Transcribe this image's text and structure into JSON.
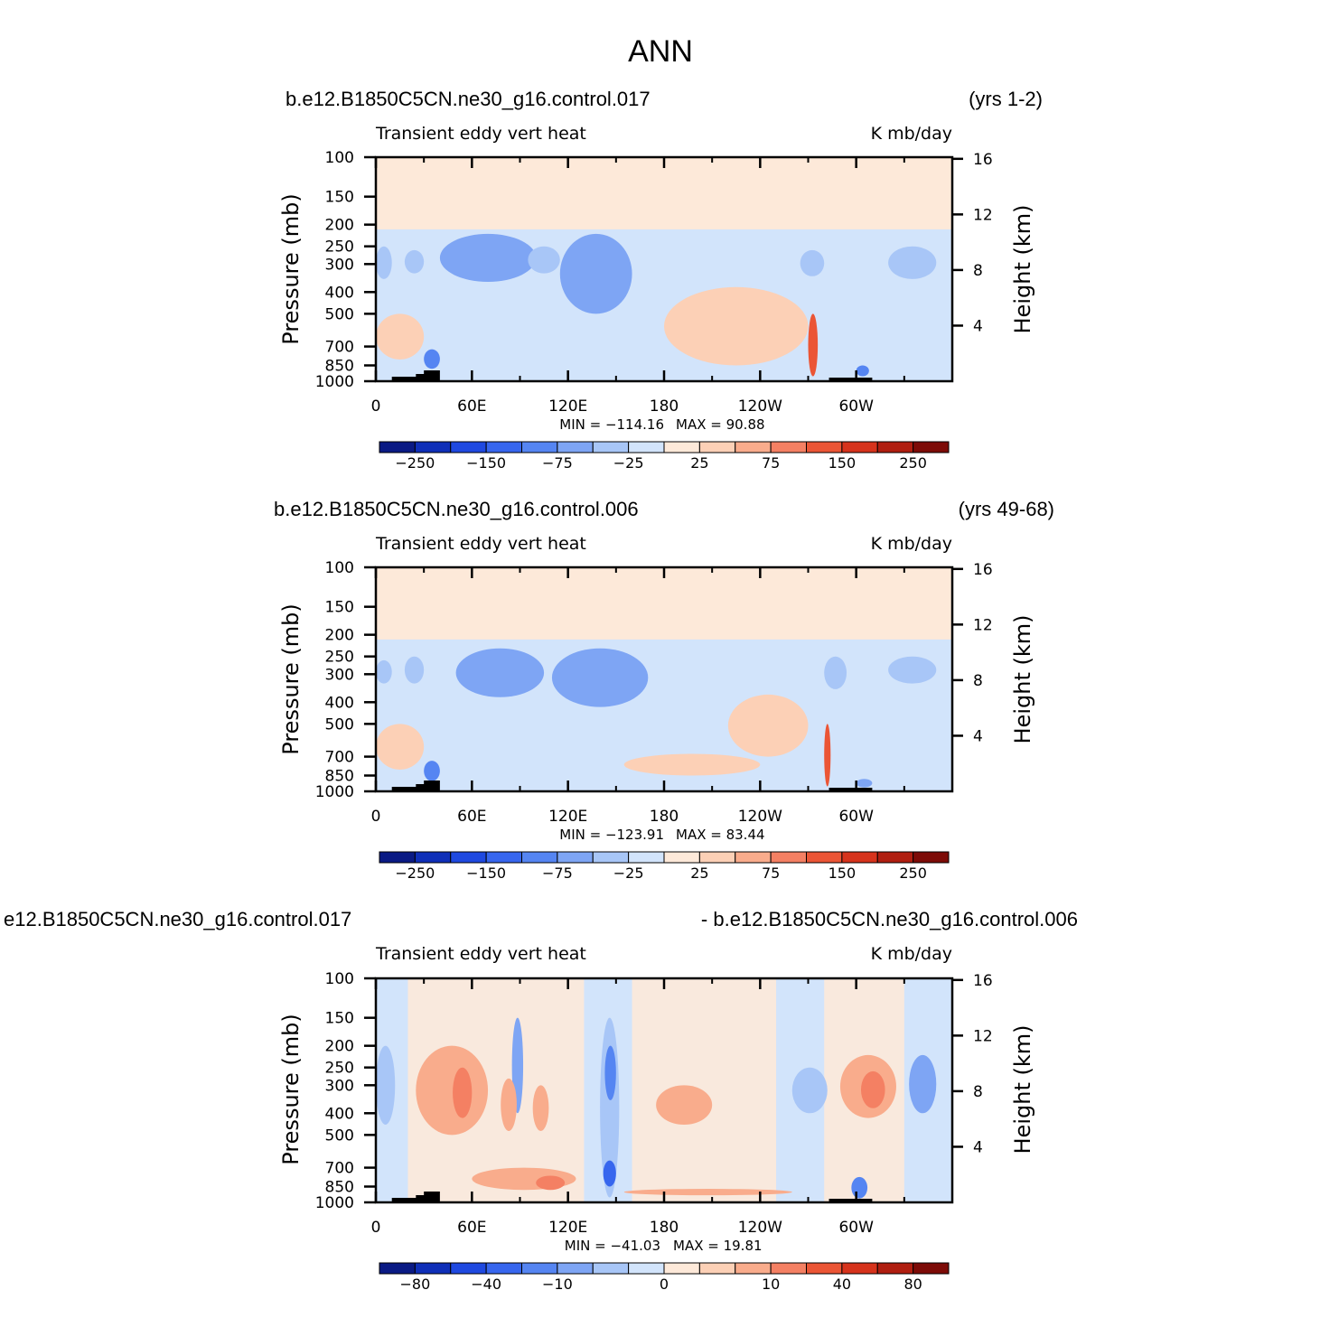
{
  "figure_title": "ANN",
  "chart_data": [
    {
      "type": "heatmap",
      "case_label": "b.e12.B1850C5CN.ne30_g16.control.017",
      "years_label": "(yrs 1-2)",
      "variable_label": "Transient eddy vert heat",
      "units_label": "K mb/day",
      "ylabel_left": "Pressure (mb)",
      "ylabel_right": "Height (km)",
      "x_tick_labels": [
        "0",
        "60E",
        "120E",
        "180",
        "120W",
        "60W"
      ],
      "x_tick_longitudes": [
        0,
        60,
        120,
        180,
        240,
        300
      ],
      "xlim": [
        0,
        360
      ],
      "y_tick_labels": [
        "100",
        "150",
        "200",
        "250",
        "300",
        "400",
        "500",
        "700",
        "850",
        "1000"
      ],
      "y_tick_pressures": [
        100,
        150,
        200,
        250,
        300,
        400,
        500,
        700,
        850,
        1000
      ],
      "ylim": [
        1000,
        100
      ],
      "height_tick_labels": [
        "16",
        "12",
        "8",
        "4"
      ],
      "height_ticks_km": [
        16,
        12,
        8,
        4
      ],
      "min_label": "MIN = −114.16",
      "max_label": "MAX = 90.88",
      "min_value": -114.16,
      "max_value": 90.88,
      "colorbar_levels": [
        -300,
        -250,
        -200,
        -150,
        -100,
        -75,
        -50,
        -25,
        0,
        25,
        50,
        75,
        100,
        150,
        200,
        250,
        300
      ],
      "colorbar_labels": [
        "−250",
        "−150",
        "−75",
        "−25",
        "25",
        "75",
        "150",
        "250"
      ],
      "colorbar_label_levels": [
        -250,
        -150,
        -75,
        -25,
        25,
        75,
        150,
        250
      ],
      "colorbar_colors": [
        "#0a1a84",
        "#0f2fb8",
        "#1f49e0",
        "#3766ee",
        "#5585f2",
        "#7ea5f4",
        "#a8c6f7",
        "#d2e4fb",
        "#fde9d9",
        "#fcd0b6",
        "#f9ac8c",
        "#f48063",
        "#eb5535",
        "#d6331c",
        "#b01e10",
        "#7d0b07"
      ],
      "blobs": [
        {
          "lon_range": [
            40,
            100
          ],
          "p_range": [
            220,
            360
          ],
          "level": -75
        },
        {
          "lon_range": [
            115,
            160
          ],
          "p_range": [
            220,
            500
          ],
          "level": -75
        },
        {
          "lon_range": [
            95,
            115
          ],
          "p_range": [
            250,
            330
          ],
          "level": -50
        },
        {
          "lon_range": [
            0,
            10
          ],
          "p_range": [
            250,
            350
          ],
          "level": -50
        },
        {
          "lon_range": [
            18,
            30
          ],
          "p_range": [
            260,
            330
          ],
          "level": -50
        },
        {
          "lon_range": [
            265,
            280
          ],
          "p_range": [
            260,
            340
          ],
          "level": -50
        },
        {
          "lon_range": [
            320,
            350
          ],
          "p_range": [
            250,
            350
          ],
          "level": -50
        },
        {
          "lon_range": [
            30,
            40
          ],
          "p_range": [
            720,
            880
          ],
          "level": -100
        },
        {
          "lon_range": [
            300,
            308
          ],
          "p_range": [
            850,
            950
          ],
          "level": -100
        },
        {
          "lon_range": [
            180,
            270
          ],
          "p_range": [
            380,
            850
          ],
          "level": 25
        },
        {
          "lon_range": [
            0,
            30
          ],
          "p_range": [
            500,
            800
          ],
          "level": 25
        },
        {
          "lon_range": [
            270,
            276
          ],
          "p_range": [
            500,
            950
          ],
          "level": 100
        }
      ]
    },
    {
      "type": "heatmap",
      "case_label": "b.e12.B1850C5CN.ne30_g16.control.006",
      "years_label": "(yrs 49-68)",
      "variable_label": "Transient eddy vert heat",
      "units_label": "K mb/day",
      "ylabel_left": "Pressure (mb)",
      "ylabel_right": "Height (km)",
      "x_tick_labels": [
        "0",
        "60E",
        "120E",
        "180",
        "120W",
        "60W"
      ],
      "x_tick_longitudes": [
        0,
        60,
        120,
        180,
        240,
        300
      ],
      "xlim": [
        0,
        360
      ],
      "y_tick_labels": [
        "100",
        "150",
        "200",
        "250",
        "300",
        "400",
        "500",
        "700",
        "850",
        "1000"
      ],
      "y_tick_pressures": [
        100,
        150,
        200,
        250,
        300,
        400,
        500,
        700,
        850,
        1000
      ],
      "ylim": [
        1000,
        100
      ],
      "height_tick_labels": [
        "16",
        "12",
        "8",
        "4"
      ],
      "height_ticks_km": [
        16,
        12,
        8,
        4
      ],
      "min_label": "MIN = −123.91",
      "max_label": "MAX = 83.44",
      "min_value": -123.91,
      "max_value": 83.44,
      "colorbar_levels": [
        -300,
        -250,
        -200,
        -150,
        -100,
        -75,
        -50,
        -25,
        0,
        25,
        50,
        75,
        100,
        150,
        200,
        250,
        300
      ],
      "colorbar_labels": [
        "−250",
        "−150",
        "−75",
        "−25",
        "25",
        "75",
        "150",
        "250"
      ],
      "colorbar_label_levels": [
        -250,
        -150,
        -75,
        -25,
        25,
        75,
        150,
        250
      ],
      "colorbar_colors": [
        "#0a1a84",
        "#0f2fb8",
        "#1f49e0",
        "#3766ee",
        "#5585f2",
        "#7ea5f4",
        "#a8c6f7",
        "#d2e4fb",
        "#fde9d9",
        "#fcd0b6",
        "#f9ac8c",
        "#f48063",
        "#eb5535",
        "#d6331c",
        "#b01e10",
        "#7d0b07"
      ],
      "blobs": [
        {
          "lon_range": [
            50,
            105
          ],
          "p_range": [
            230,
            380
          ],
          "level": -75
        },
        {
          "lon_range": [
            110,
            170
          ],
          "p_range": [
            230,
            420
          ],
          "level": -75
        },
        {
          "lon_range": [
            0,
            10
          ],
          "p_range": [
            260,
            330
          ],
          "level": -50
        },
        {
          "lon_range": [
            18,
            30
          ],
          "p_range": [
            250,
            330
          ],
          "level": -50
        },
        {
          "lon_range": [
            280,
            294
          ],
          "p_range": [
            250,
            350
          ],
          "level": -50
        },
        {
          "lon_range": [
            320,
            350
          ],
          "p_range": [
            250,
            330
          ],
          "level": -50
        },
        {
          "lon_range": [
            30,
            40
          ],
          "p_range": [
            730,
            900
          ],
          "level": -100
        },
        {
          "lon_range": [
            300,
            310
          ],
          "p_range": [
            880,
            960
          ],
          "level": -75
        },
        {
          "lon_range": [
            220,
            270
          ],
          "p_range": [
            370,
            700
          ],
          "level": 25
        },
        {
          "lon_range": [
            155,
            240
          ],
          "p_range": [
            680,
            850
          ],
          "level": 25
        },
        {
          "lon_range": [
            0,
            30
          ],
          "p_range": [
            500,
            800
          ],
          "level": 25
        },
        {
          "lon_range": [
            280,
            284
          ],
          "p_range": [
            500,
            950
          ],
          "level": 100
        }
      ]
    },
    {
      "type": "heatmap",
      "case_label": "e12.B1850C5CN.ne30_g16.control.017",
      "years_label": "- b.e12.B1850C5CN.ne30_g16.control.006",
      "variable_label": "Transient eddy vert heat",
      "units_label": "K mb/day",
      "ylabel_left": "Pressure (mb)",
      "ylabel_right": "Height (km)",
      "x_tick_labels": [
        "0",
        "60E",
        "120E",
        "180",
        "120W",
        "60W"
      ],
      "x_tick_longitudes": [
        0,
        60,
        120,
        180,
        240,
        300
      ],
      "xlim": [
        0,
        360
      ],
      "y_tick_labels": [
        "100",
        "150",
        "200",
        "250",
        "300",
        "400",
        "500",
        "700",
        "850",
        "1000"
      ],
      "y_tick_pressures": [
        100,
        150,
        200,
        250,
        300,
        400,
        500,
        700,
        850,
        1000
      ],
      "ylim": [
        1000,
        100
      ],
      "height_tick_labels": [
        "16",
        "12",
        "8",
        "4"
      ],
      "height_ticks_km": [
        16,
        12,
        8,
        4
      ],
      "min_label": "MIN = −41.03",
      "max_label": "MAX = 19.81",
      "min_value": -41.03,
      "max_value": 19.81,
      "colorbar_levels": [
        -120,
        -80,
        -60,
        -40,
        -20,
        -10,
        -5,
        -1,
        0,
        1,
        5,
        10,
        20,
        40,
        60,
        80,
        120
      ],
      "colorbar_labels": [
        "−80",
        "−40",
        "−10",
        "0",
        "10",
        "40",
        "80"
      ],
      "colorbar_label_levels": [
        -80,
        -40,
        -10,
        0,
        10,
        40,
        80
      ],
      "colorbar_colors": [
        "#0a1a84",
        "#0f2fb8",
        "#1f49e0",
        "#3766ee",
        "#5585f2",
        "#7ea5f4",
        "#a8c6f7",
        "#d2e4fb",
        "#fde9d9",
        "#fcd0b6",
        "#f9ac8c",
        "#f48063",
        "#eb5535",
        "#d6331c",
        "#b01e10",
        "#7d0b07"
      ],
      "blobs": [
        {
          "lon_range": [
            140,
            152
          ],
          "p_range": [
            150,
            950
          ],
          "level": -5
        },
        {
          "lon_range": [
            143,
            150
          ],
          "p_range": [
            200,
            350
          ],
          "level": -20
        },
        {
          "lon_range": [
            142,
            150
          ],
          "p_range": [
            650,
            850
          ],
          "level": -40
        },
        {
          "lon_range": [
            85,
            92
          ],
          "p_range": [
            150,
            400
          ],
          "level": -10
        },
        {
          "lon_range": [
            333,
            350
          ],
          "p_range": [
            220,
            400
          ],
          "level": -10
        },
        {
          "lon_range": [
            0,
            12
          ],
          "p_range": [
            200,
            450
          ],
          "level": -5
        },
        {
          "lon_range": [
            260,
            282
          ],
          "p_range": [
            250,
            400
          ],
          "level": -5
        },
        {
          "lon_range": [
            297,
            307
          ],
          "p_range": [
            770,
            960
          ],
          "level": -20
        },
        {
          "lon_range": [
            25,
            70
          ],
          "p_range": [
            200,
            500
          ],
          "level": 5
        },
        {
          "lon_range": [
            48,
            60
          ],
          "p_range": [
            250,
            420
          ],
          "level": 10
        },
        {
          "lon_range": [
            78,
            88
          ],
          "p_range": [
            280,
            480
          ],
          "level": 5
        },
        {
          "lon_range": [
            98,
            108
          ],
          "p_range": [
            300,
            480
          ],
          "level": 5
        },
        {
          "lon_range": [
            175,
            210
          ],
          "p_range": [
            300,
            450
          ],
          "level": 5
        },
        {
          "lon_range": [
            290,
            325
          ],
          "p_range": [
            220,
            420
          ],
          "level": 5
        },
        {
          "lon_range": [
            303,
            318
          ],
          "p_range": [
            260,
            380
          ],
          "level": 10
        },
        {
          "lon_range": [
            155,
            260
          ],
          "p_range": [
            870,
            930
          ],
          "level": 5
        },
        {
          "lon_range": [
            60,
            125
          ],
          "p_range": [
            700,
            880
          ],
          "level": 5
        },
        {
          "lon_range": [
            100,
            118
          ],
          "p_range": [
            760,
            880
          ],
          "level": 10
        }
      ]
    }
  ]
}
